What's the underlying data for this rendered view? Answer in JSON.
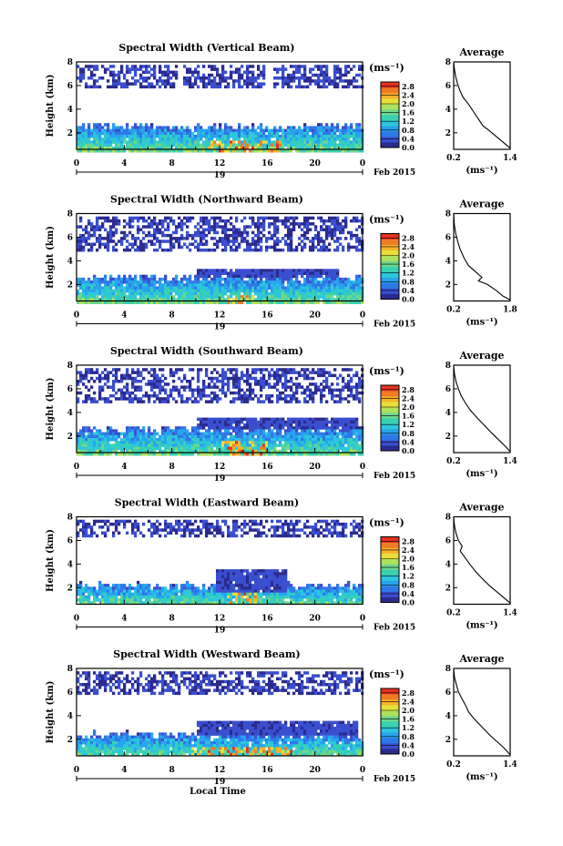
{
  "figure": {
    "xlabel": "Local Time",
    "colors": {
      "blank": "#ffffff",
      "axis": "#000000",
      "colormap": [
        "#2b2b8f",
        "#3a4fcf",
        "#2f78e8",
        "#27a4ee",
        "#2cc6dc",
        "#38d1b2",
        "#6fd78a",
        "#aee15c",
        "#e8e03a",
        "#f7b32b",
        "#f17a25",
        "#e33320"
      ]
    }
  },
  "chart_data": [
    {
      "type": "heatmap",
      "title": "Spectral Width (Vertical Beam)",
      "ylabel": "Height (km)",
      "x_ticks": [
        "0",
        "4",
        "8",
        "12",
        "16",
        "20",
        "0"
      ],
      "date_label": "19",
      "month_label": "Feb 2015",
      "xlim": [
        0,
        24
      ],
      "ylim": [
        0.6,
        8
      ],
      "y_ticks": [
        "2",
        "4",
        "6",
        "8"
      ],
      "colorbar": {
        "unit": "(ms⁻¹)",
        "ticks": [
          "0.0",
          "0.4",
          "0.8",
          "1.2",
          "1.6",
          "2.0",
          "2.4",
          "2.8"
        ],
        "range": [
          0,
          3
        ]
      },
      "cloud_bands": [
        [
          0.6,
          3.2
        ],
        [
          6.0,
          7.8
        ]
      ],
      "upper_band_gaps": [
        [
          8.3,
          8.8
        ],
        [
          15.8,
          16.3
        ]
      ],
      "hot_spot": {
        "x": [
          11.0,
          17.0
        ],
        "y": [
          0.6,
          1.5
        ]
      },
      "average_profile": {
        "title": "Average",
        "xlabel": "(ms⁻¹)",
        "x_ticks": [
          "0.2",
          "1.4"
        ],
        "xlim": [
          0.2,
          1.4
        ],
        "y_ticks": [
          "2",
          "4",
          "6",
          "8"
        ],
        "ylim": [
          0.6,
          8
        ],
        "x": [
          0.2,
          0.22,
          0.24,
          0.28,
          0.33,
          0.4,
          0.52,
          0.62,
          0.72,
          0.82,
          0.95,
          1.1,
          1.25,
          1.4
        ],
        "y": [
          7.9,
          7.3,
          6.8,
          6.2,
          5.6,
          5.0,
          4.4,
          3.8,
          3.2,
          2.6,
          2.2,
          1.7,
          1.2,
          0.7
        ]
      }
    },
    {
      "type": "heatmap",
      "title": "Spectral Width (Northward Beam)",
      "ylabel": "Height (km)",
      "x_ticks": [
        "0",
        "4",
        "8",
        "12",
        "16",
        "20",
        "0"
      ],
      "date_label": "19",
      "month_label": "Feb 2015",
      "xlim": [
        0,
        24
      ],
      "ylim": [
        0.6,
        8
      ],
      "y_ticks": [
        "2",
        "4",
        "6",
        "8"
      ],
      "colorbar": {
        "unit": "(ms⁻¹)",
        "ticks": [
          "0.0",
          "0.4",
          "0.8",
          "1.2",
          "1.6",
          "2.0",
          "2.4",
          "2.8"
        ],
        "range": [
          0,
          3
        ]
      },
      "cloud_bands": [
        [
          0.6,
          3.2
        ],
        [
          5.0,
          7.8
        ]
      ],
      "mid_band": {
        "x": [
          10.0,
          22.0
        ],
        "y": [
          2.6,
          3.4
        ]
      },
      "hot_spot": {
        "x": [
          12.5,
          15.0
        ],
        "y": [
          0.6,
          1.2
        ]
      },
      "average_profile": {
        "title": "Average",
        "xlabel": "(ms⁻¹)",
        "x_ticks": [
          "0.2",
          "1.8"
        ],
        "xlim": [
          0.2,
          1.8
        ],
        "y_ticks": [
          "2",
          "4",
          "6",
          "8"
        ],
        "ylim": [
          0.6,
          8
        ],
        "x": [
          0.2,
          0.22,
          0.26,
          0.32,
          0.38,
          0.5,
          0.62,
          0.85,
          1.0,
          0.9,
          1.15,
          1.4,
          1.6,
          1.8
        ],
        "y": [
          7.9,
          7.0,
          6.3,
          5.6,
          5.0,
          4.2,
          3.6,
          3.0,
          2.6,
          2.3,
          2.0,
          1.5,
          1.0,
          0.7
        ]
      }
    },
    {
      "type": "heatmap",
      "title": "Spectral Width (Southward Beam)",
      "ylabel": "Height (km)",
      "x_ticks": [
        "0",
        "4",
        "8",
        "12",
        "16",
        "20",
        "0"
      ],
      "date_label": "19",
      "month_label": "Feb 2015",
      "xlim": [
        0,
        24
      ],
      "ylim": [
        0.6,
        8
      ],
      "y_ticks": [
        "2",
        "4",
        "6",
        "8"
      ],
      "colorbar": {
        "unit": "(ms⁻¹)",
        "ticks": [
          "0.0",
          "0.4",
          "0.8",
          "1.2",
          "1.6",
          "2.0",
          "2.4",
          "2.8"
        ],
        "range": [
          0,
          3
        ]
      },
      "cloud_bands": [
        [
          0.6,
          3.2
        ],
        [
          5.0,
          7.8
        ]
      ],
      "mid_band": {
        "x": [
          10.0,
          23.5
        ],
        "y": [
          2.6,
          3.6
        ]
      },
      "hot_spot": {
        "x": [
          12.0,
          16.0
        ],
        "y": [
          0.6,
          1.8
        ]
      },
      "average_profile": {
        "title": "Average",
        "xlabel": "(ms⁻¹)",
        "x_ticks": [
          "0.2",
          "1.4"
        ],
        "xlim": [
          0.2,
          1.4
        ],
        "y_ticks": [
          "2",
          "4",
          "6",
          "8"
        ],
        "ylim": [
          0.6,
          8
        ],
        "x": [
          0.2,
          0.22,
          0.25,
          0.3,
          0.36,
          0.45,
          0.55,
          0.66,
          0.78,
          0.9,
          1.02,
          1.15,
          1.28,
          1.4
        ],
        "y": [
          7.9,
          7.2,
          6.6,
          6.0,
          5.4,
          4.8,
          4.2,
          3.7,
          3.2,
          2.7,
          2.2,
          1.7,
          1.2,
          0.7
        ]
      }
    },
    {
      "type": "heatmap",
      "title": "Spectral Width (Eastward Beam)",
      "ylabel": "Height (km)",
      "x_ticks": [
        "0",
        "4",
        "8",
        "12",
        "16",
        "20",
        "0"
      ],
      "date_label": "19",
      "month_label": "Feb 2015",
      "xlim": [
        0,
        24
      ],
      "ylim": [
        0.6,
        8
      ],
      "y_ticks": [
        "2",
        "4",
        "6",
        "8"
      ],
      "colorbar": {
        "unit": "(ms⁻¹)",
        "ticks": [
          "0.0",
          "0.4",
          "0.8",
          "1.2",
          "1.6",
          "2.0",
          "2.4",
          "2.8"
        ],
        "range": [
          0,
          3
        ]
      },
      "cloud_bands": [
        [
          0.6,
          2.8
        ],
        [
          6.4,
          7.8
        ]
      ],
      "mid_band": {
        "x": [
          11.5,
          17.5
        ],
        "y": [
          1.8,
          3.6
        ]
      },
      "hot_spot": {
        "x": [
          12.5,
          15.0
        ],
        "y": [
          0.6,
          1.6
        ]
      },
      "average_profile": {
        "title": "Average",
        "xlabel": "(ms⁻¹)",
        "x_ticks": [
          "0.2",
          "1.4"
        ],
        "xlim": [
          0.2,
          1.4
        ],
        "y_ticks": [
          "2",
          "4",
          "6",
          "8"
        ],
        "ylim": [
          0.6,
          8
        ],
        "x": [
          0.2,
          0.22,
          0.25,
          0.3,
          0.38,
          0.34,
          0.45,
          0.56,
          0.68,
          0.8,
          0.95,
          1.1,
          1.25,
          1.4
        ],
        "y": [
          7.9,
          7.2,
          6.6,
          6.0,
          5.5,
          5.1,
          4.5,
          3.9,
          3.3,
          2.8,
          2.2,
          1.7,
          1.2,
          0.7
        ]
      }
    },
    {
      "type": "heatmap",
      "title": "Spectral Width (Westward Beam)",
      "ylabel": "Height (km)",
      "x_ticks": [
        "0",
        "4",
        "8",
        "12",
        "16",
        "20",
        "0"
      ],
      "date_label": "19",
      "month_label": "Feb 2015",
      "xlim": [
        0,
        24
      ],
      "ylim": [
        0.6,
        8
      ],
      "y_ticks": [
        "2",
        "4",
        "6",
        "8"
      ],
      "colorbar": {
        "unit": "(ms⁻¹)",
        "ticks": [
          "0.0",
          "0.4",
          "0.8",
          "1.2",
          "1.6",
          "2.0",
          "2.4",
          "2.8"
        ],
        "range": [
          0,
          3
        ]
      },
      "cloud_bands": [
        [
          0.6,
          3.0
        ],
        [
          6.0,
          7.8
        ]
      ],
      "mid_band": {
        "x": [
          10.0,
          23.5
        ],
        "y": [
          2.4,
          3.6
        ]
      },
      "hot_spot": {
        "x": [
          9.5,
          18.0
        ],
        "y": [
          0.6,
          1.4
        ]
      },
      "average_profile": {
        "title": "Average",
        "xlabel": "(ms⁻¹)",
        "x_ticks": [
          "0.2",
          "1.4"
        ],
        "xlim": [
          0.2,
          1.4
        ],
        "y_ticks": [
          "2",
          "4",
          "6",
          "8"
        ],
        "ylim": [
          0.6,
          8
        ],
        "x": [
          0.2,
          0.22,
          0.26,
          0.3,
          0.38,
          0.45,
          0.52,
          0.62,
          0.74,
          0.86,
          0.98,
          1.12,
          1.26,
          1.4
        ],
        "y": [
          7.9,
          7.2,
          6.6,
          6.0,
          5.4,
          4.9,
          4.3,
          3.8,
          3.3,
          2.8,
          2.3,
          1.8,
          1.3,
          0.7
        ]
      }
    }
  ]
}
